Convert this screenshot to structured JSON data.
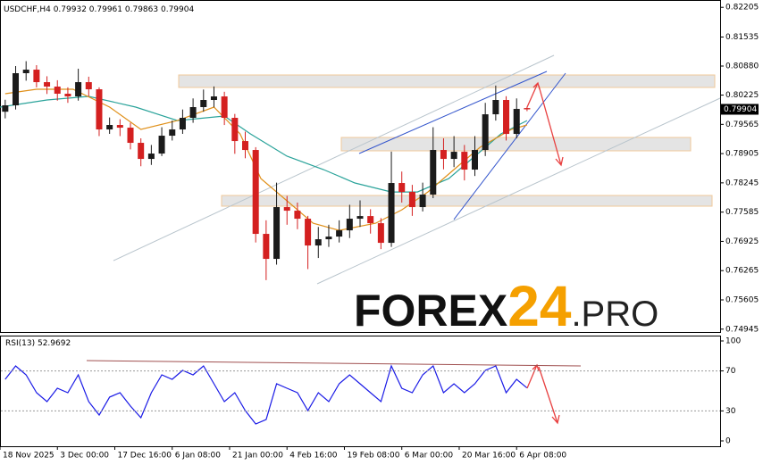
{
  "chart_data": [
    {
      "type": "candlestick",
      "title": "USDCHF,H4",
      "x": [
        1,
        3,
        5,
        7,
        9,
        11,
        13,
        15,
        17,
        19,
        21,
        23,
        25,
        27,
        29,
        31,
        33,
        35,
        37,
        39,
        41,
        43,
        45,
        47,
        49,
        51,
        53,
        55,
        57,
        59,
        61,
        63,
        65,
        67,
        69,
        71,
        73,
        75,
        77,
        79,
        81,
        83,
        85,
        87,
        89,
        91,
        93,
        95,
        97,
        99,
        101
      ],
      "open": [
        0.7985,
        0.79994,
        0.80719,
        0.80799,
        0.80517,
        0.80417,
        0.80256,
        0.80195,
        0.80517,
        0.80356,
        0.7945,
        0.79551,
        0.7949,
        0.79148,
        0.78785,
        0.78906,
        0.79309,
        0.7945,
        0.79712,
        0.79954,
        0.80115,
        0.80195,
        0.79712,
        0.79188,
        0.78987,
        0.77094,
        0.7653,
        0.77698,
        0.77617,
        0.77436,
        0.76832,
        0.76973,
        0.77033,
        0.77174,
        0.77436,
        0.77496,
        0.77335,
        0.76892,
        0.78242,
        0.7804,
        0.77698,
        0.7798,
        0.78987,
        0.78785,
        0.78946,
        0.78544,
        0.78987,
        0.79792,
        0.80115,
        0.79349,
        0.79932
      ],
      "high": [
        0.8012,
        0.8088,
        0.8099,
        0.809,
        0.8065,
        0.8056,
        0.804,
        0.8082,
        0.8064,
        0.804,
        0.7972,
        0.7968,
        0.796,
        0.7925,
        0.791,
        0.795,
        0.7965,
        0.799,
        0.8015,
        0.8035,
        0.8042,
        0.803,
        0.798,
        0.794,
        0.7905,
        0.774,
        0.7825,
        0.7795,
        0.778,
        0.775,
        0.7725,
        0.773,
        0.774,
        0.7775,
        0.7785,
        0.7765,
        0.7745,
        0.7895,
        0.785,
        0.782,
        0.7825,
        0.795,
        0.7925,
        0.793,
        0.791,
        0.793,
        0.8005,
        0.8044,
        0.802,
        0.8015,
        0.79961
      ],
      "low": [
        0.797,
        0.799,
        0.8055,
        0.804,
        0.8025,
        0.801,
        0.8005,
        0.801,
        0.802,
        0.793,
        0.7935,
        0.793,
        0.79,
        0.7862,
        0.7865,
        0.7885,
        0.792,
        0.7935,
        0.796,
        0.7985,
        0.7995,
        0.7955,
        0.789,
        0.788,
        0.769,
        0.7605,
        0.764,
        0.773,
        0.772,
        0.763,
        0.7655,
        0.768,
        0.769,
        0.77,
        0.7725,
        0.771,
        0.7675,
        0.768,
        0.778,
        0.775,
        0.776,
        0.779,
        0.7855,
        0.786,
        0.783,
        0.784,
        0.7885,
        0.7965,
        0.792,
        0.7925,
        0.79863
      ],
      "close": [
        0.79994,
        0.80719,
        0.80799,
        0.80517,
        0.80417,
        0.80256,
        0.80195,
        0.80517,
        0.80356,
        0.7945,
        0.79551,
        0.7949,
        0.79148,
        0.78785,
        0.78906,
        0.79309,
        0.7945,
        0.79712,
        0.79954,
        0.80115,
        0.80195,
        0.79712,
        0.79188,
        0.78987,
        0.77094,
        0.7653,
        0.77698,
        0.77617,
        0.77436,
        0.76832,
        0.76973,
        0.77033,
        0.77174,
        0.77436,
        0.77496,
        0.77335,
        0.76892,
        0.78242,
        0.7804,
        0.77698,
        0.7798,
        0.78987,
        0.78785,
        0.78946,
        0.78544,
        0.78987,
        0.79792,
        0.80115,
        0.79349,
        0.79913,
        0.79904
      ],
      "up_color": "#1b1b1b",
      "down_color": "#d42020",
      "lines": [
        {
          "color": "#2aa39a",
          "x": [
            0,
            9,
            17,
            26,
            34,
            43,
            48,
            55,
            62,
            68,
            75,
            80,
            86,
            91,
            96,
            101
          ],
          "values": [
            0.79954,
            0.80115,
            0.80195,
            0.79954,
            0.79651,
            0.79752,
            0.79349,
            0.78846,
            0.78544,
            0.78242,
            0.7804,
            0.7804,
            0.78342,
            0.78846,
            0.79349,
            0.79651
          ]
        },
        {
          "color": "#e0901a",
          "x": [
            1,
            7,
            14,
            21,
            27,
            34,
            41,
            46,
            50,
            55,
            60,
            65,
            72,
            77,
            82,
            87,
            92,
            98,
            101
          ],
          "values": [
            0.80256,
            0.80356,
            0.80356,
            0.79954,
            0.7945,
            0.79651,
            0.79954,
            0.79349,
            0.78342,
            0.77839,
            0.77335,
            0.77174,
            0.77335,
            0.77637,
            0.7804,
            0.78544,
            0.79047,
            0.7945,
            0.79551
          ]
        }
      ],
      "xlim": [
        0,
        138
      ],
      "xticks": [
        {
          "value": 0,
          "label": "18 Nov 2025"
        },
        {
          "value": 11,
          "label": "3 Dec 00:00"
        },
        {
          "value": 22,
          "label": "17 Dec 16:00"
        },
        {
          "value": 33,
          "label": "6 Jan 08:00"
        },
        {
          "value": 44,
          "label": "21 Jan 00:00"
        },
        {
          "value": 55,
          "label": "4 Feb 16:00"
        },
        {
          "value": 66,
          "label": "19 Feb 08:00"
        },
        {
          "value": 77,
          "label": "6 Mar 00:00"
        },
        {
          "value": 88,
          "label": "20 Mar 16:00"
        },
        {
          "value": 99,
          "label": "6 Apr 08:00"
        }
      ],
      "ylim": [
        0.7488,
        0.8233
      ],
      "yticks": [
        0.82205,
        0.81535,
        {
          "value": 0.8088,
          "label": "0.80880"
        },
        0.80225,
        0.79565,
        0.78905,
        0.78245,
        0.77585,
        0.76925,
        0.76265,
        0.75605,
        0.74945
      ],
      "watermark": [
        "FOREX",
        "24",
        ".PRO"
      ]
    },
    {
      "type": "line",
      "series": [
        {
          "name": "RSI(13)",
          "color": "#1a1ae6",
          "values": [
            61.6,
            75.0,
            66.1,
            48.2,
            39.3,
            52.7,
            48.2,
            66.1,
            39.3,
            25.9,
            43.8,
            48.2,
            34.8,
            23.2,
            48.2,
            66.1,
            61.6,
            70.5,
            66.1,
            75.0,
            57.1,
            39.3,
            48.2,
            30.4,
            17.0,
            21.4,
            57.1,
            52.7,
            48.2,
            30.4,
            48.2,
            39.3,
            57.1,
            66.1,
            57.1,
            48.2,
            39.3,
            75.0,
            52.7,
            48.2,
            66.1,
            75.0,
            48.2,
            57.1,
            48.2,
            57.1,
            70.5,
            75.0,
            48.2,
            61.6,
            52.9692
          ]
        }
      ],
      "x": [
        1,
        3,
        5,
        7,
        9,
        11,
        13,
        15,
        17,
        19,
        21,
        23,
        25,
        27,
        29,
        31,
        33,
        35,
        37,
        39,
        41,
        43,
        45,
        47,
        49,
        51,
        53,
        55,
        57,
        59,
        61,
        63,
        65,
        67,
        69,
        71,
        73,
        75,
        77,
        79,
        81,
        83,
        85,
        87,
        89,
        91,
        93,
        95,
        97,
        99,
        101
      ],
      "xlim": [
        0,
        138
      ],
      "ylim": [
        0,
        100
      ],
      "yticks": [
        100,
        70,
        30,
        0
      ],
      "levels": [
        70,
        30
      ]
    }
  ]
}
